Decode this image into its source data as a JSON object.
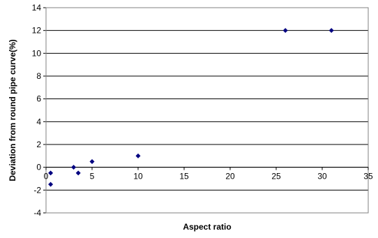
{
  "chart_data": {
    "type": "scatter",
    "title": "",
    "xlabel": "Aspect ratio",
    "ylabel": "Deviation from round pipe curve(%)",
    "xlim": [
      0,
      35
    ],
    "ylim": [
      -4,
      14
    ],
    "x_ticks": [
      0,
      5,
      10,
      15,
      20,
      25,
      30,
      35
    ],
    "y_ticks": [
      -4,
      -2,
      0,
      2,
      4,
      6,
      8,
      10,
      12,
      14
    ],
    "grid": "horizontal",
    "legend": "none",
    "marker": "diamond",
    "marker_color": "#000080",
    "series": [
      {
        "points": [
          {
            "x": 0.5,
            "y": -0.5
          },
          {
            "x": 0.5,
            "y": -1.5
          },
          {
            "x": 3,
            "y": 0
          },
          {
            "x": 3.5,
            "y": -0.5
          },
          {
            "x": 5,
            "y": 0.5
          },
          {
            "x": 10,
            "y": 1
          },
          {
            "x": 26,
            "y": 12
          },
          {
            "x": 31,
            "y": 12
          }
        ]
      }
    ]
  }
}
